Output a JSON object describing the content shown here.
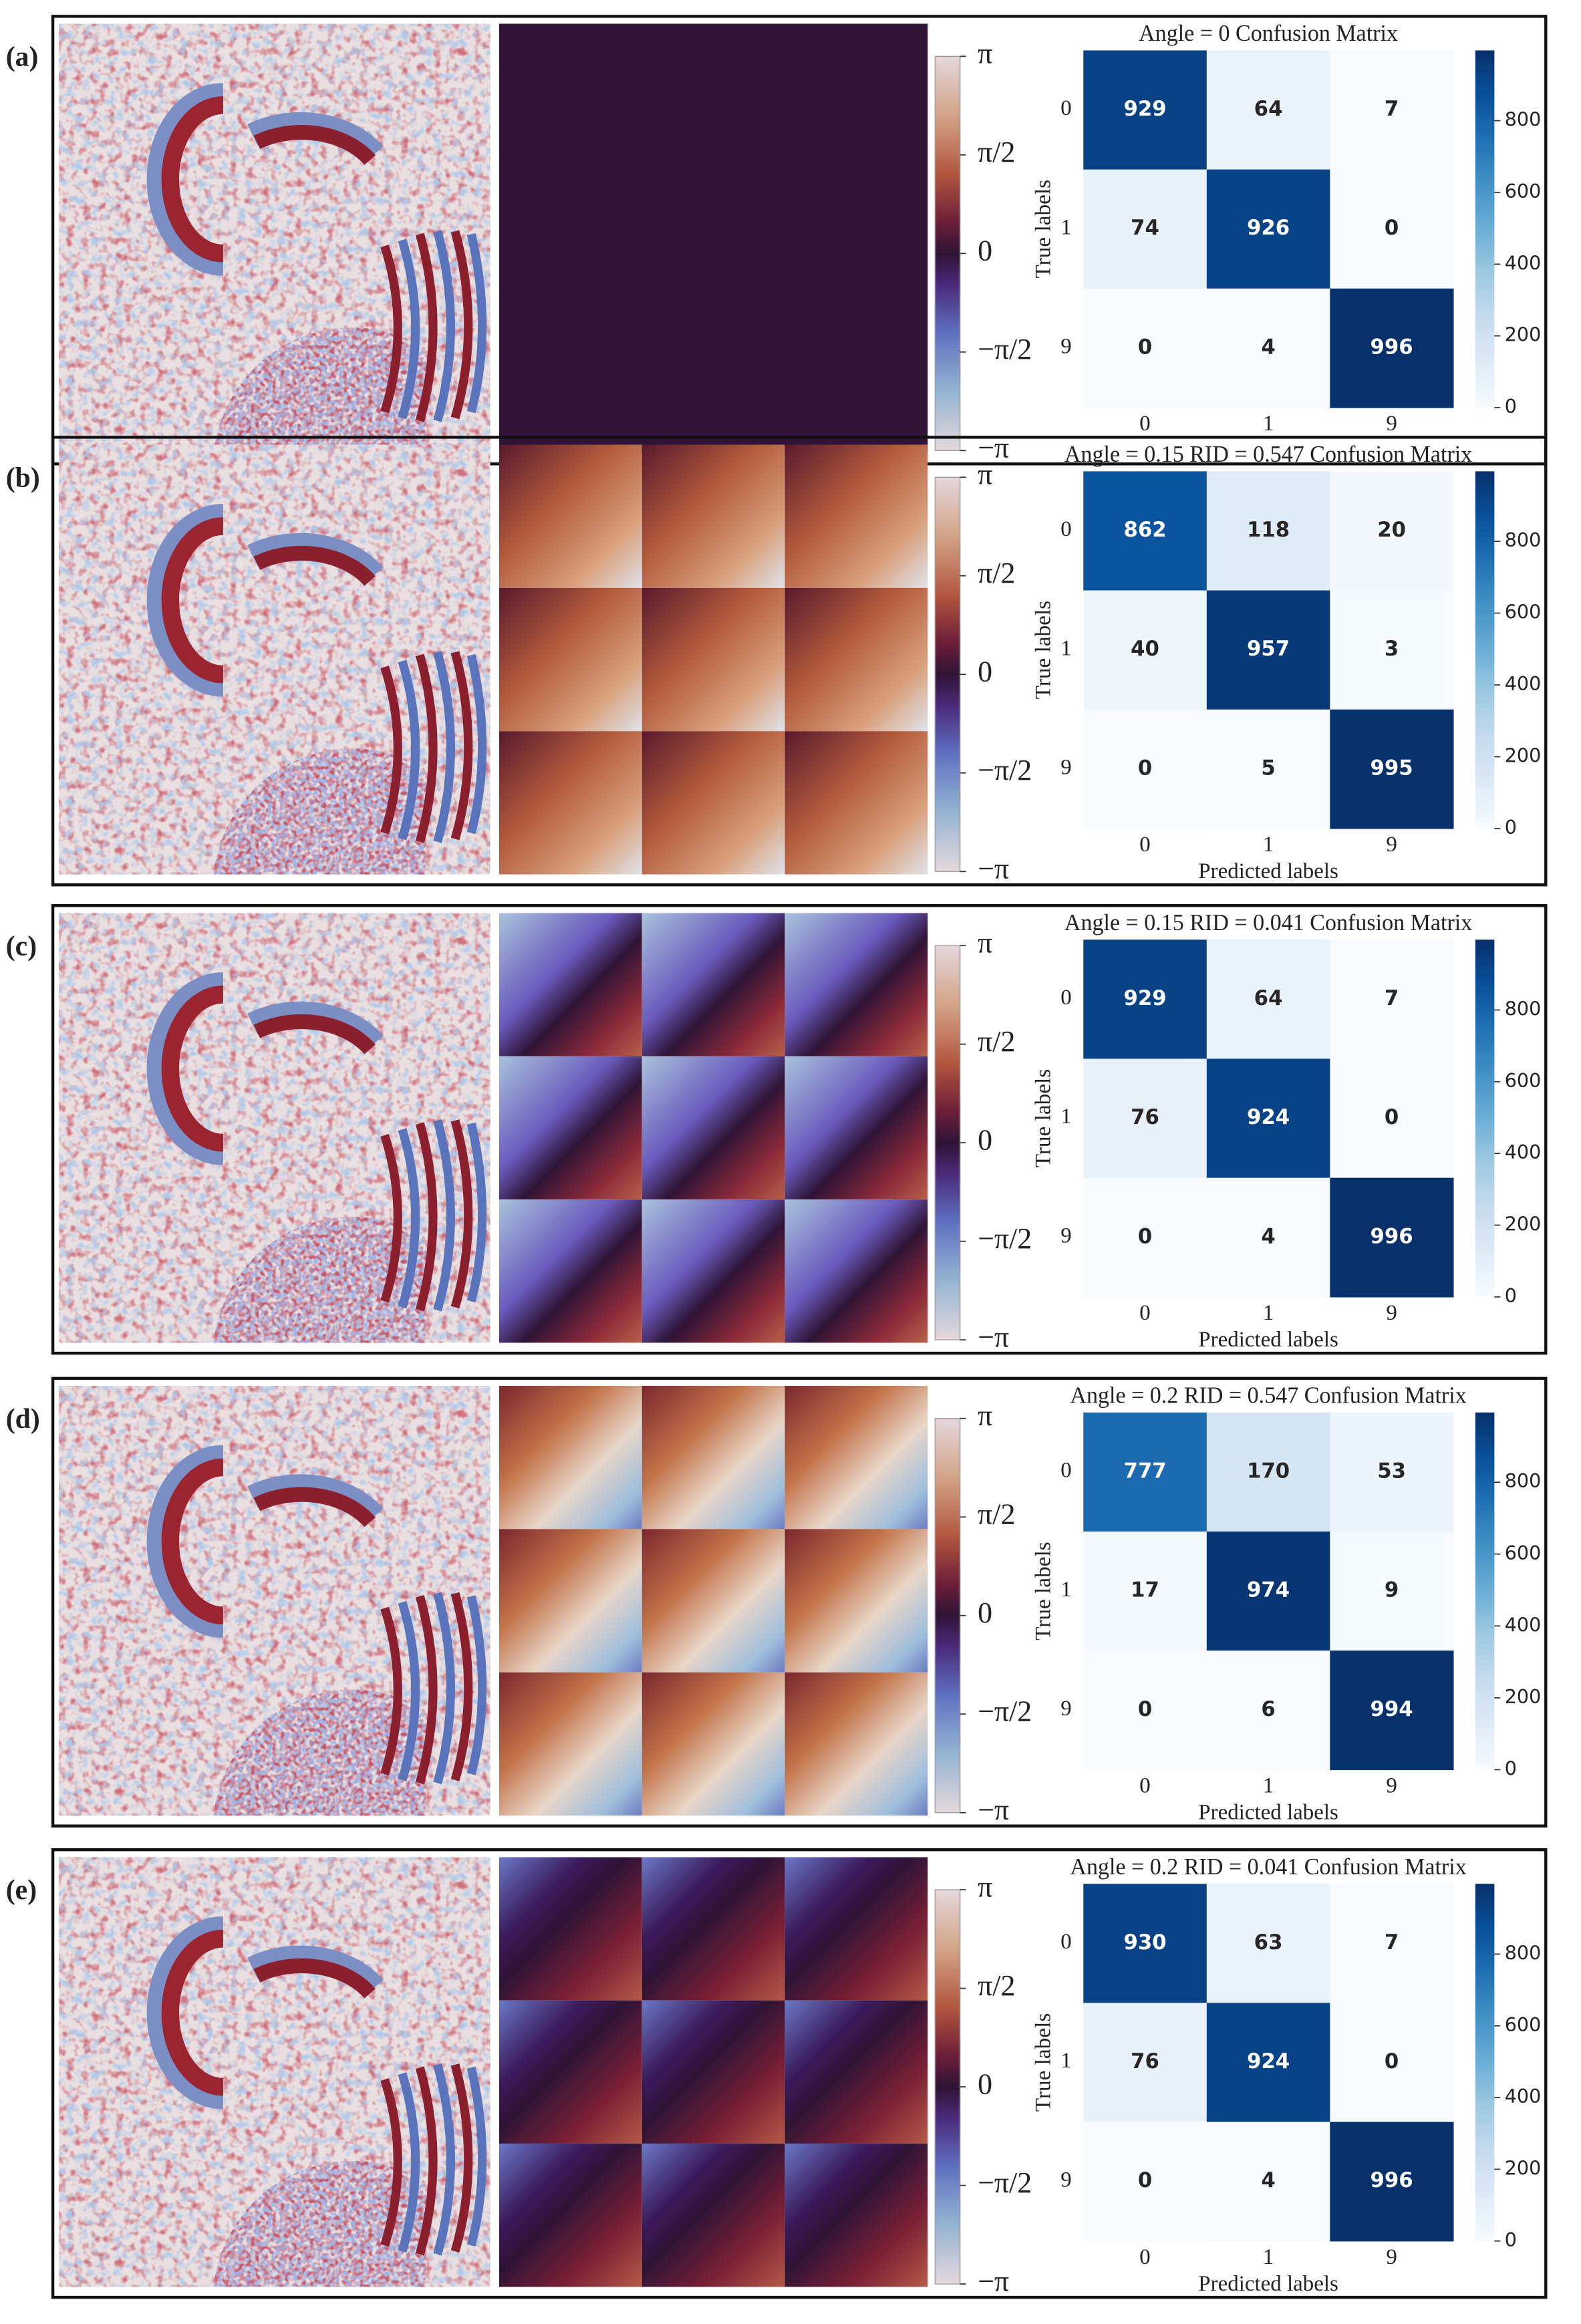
{
  "panels": [
    {
      "label": "(a)",
      "phase_colorbar": {
        "ylim": [
          -3.14159,
          3.14159
        ],
        "yticks": [
          {
            "value": 3.14159,
            "label": "π"
          },
          {
            "value": 1.5708,
            "label": "π/2"
          },
          0,
          {
            "value": -1.5708,
            "label": "−π/2"
          },
          {
            "value": -3.14159,
            "label": "−π"
          }
        ]
      }
    },
    {
      "label": "(b)",
      "phase_colorbar": {
        "ylim": [
          -3.14159,
          3.14159
        ],
        "yticks": [
          {
            "value": 3.14159,
            "label": "π"
          },
          {
            "value": 1.5708,
            "label": "π/2"
          },
          0,
          {
            "value": -1.5708,
            "label": "−π/2"
          },
          {
            "value": -3.14159,
            "label": "−π"
          }
        ]
      }
    },
    {
      "label": "(c)",
      "phase_colorbar": {
        "ylim": [
          -3.14159,
          3.14159
        ],
        "yticks": [
          {
            "value": 3.14159,
            "label": "π"
          },
          {
            "value": 1.5708,
            "label": "π/2"
          },
          0,
          {
            "value": -1.5708,
            "label": "−π/2"
          },
          {
            "value": -3.14159,
            "label": "−π"
          }
        ]
      }
    },
    {
      "label": "(d)",
      "phase_colorbar": {
        "ylim": [
          -3.14159,
          3.14159
        ],
        "yticks": [
          {
            "value": 3.14159,
            "label": "π"
          },
          {
            "value": 1.5708,
            "label": "π/2"
          },
          0,
          {
            "value": -1.5708,
            "label": "−π/2"
          },
          {
            "value": -3.14159,
            "label": "−π"
          }
        ]
      }
    },
    {
      "label": "(e)",
      "phase_colorbar": {
        "ylim": [
          -3.14159,
          3.14159
        ],
        "yticks": [
          {
            "value": 3.14159,
            "label": "π"
          },
          {
            "value": 1.5708,
            "label": "π/2"
          },
          0,
          {
            "value": -1.5708,
            "label": "−π/2"
          },
          {
            "value": -3.14159,
            "label": "−π"
          }
        ]
      }
    }
  ],
  "chart_data": [
    {
      "type": "heatmap",
      "title": "Angle = 0 Confusion Matrix",
      "y_label": "True labels",
      "categories": [
        "0",
        "1",
        "9"
      ],
      "rows": [
        "0",
        "1",
        "9"
      ],
      "values": [
        [
          929,
          64,
          7
        ],
        [
          74,
          926,
          0
        ],
        [
          0,
          4,
          996
        ]
      ],
      "colormap": "Blues",
      "clim": [
        0,
        996
      ],
      "cticks": [
        0,
        200,
        400,
        600,
        800
      ]
    },
    {
      "type": "heatmap",
      "title": "Angle = 0.15 RID = 0.547 Confusion Matrix",
      "x_label": "Predicted labels",
      "y_label": "True labels",
      "categories": [
        "0",
        "1",
        "9"
      ],
      "rows": [
        "0",
        "1",
        "9"
      ],
      "values": [
        [
          862,
          118,
          20
        ],
        [
          40,
          957,
          3
        ],
        [
          0,
          5,
          995
        ]
      ],
      "colormap": "Blues",
      "clim": [
        0,
        995
      ],
      "cticks": [
        0,
        200,
        400,
        600,
        800
      ]
    },
    {
      "type": "heatmap",
      "title": "Angle = 0.15 RID = 0.041 Confusion Matrix",
      "x_label": "Predicted labels",
      "y_label": "True labels",
      "categories": [
        "0",
        "1",
        "9"
      ],
      "rows": [
        "0",
        "1",
        "9"
      ],
      "values": [
        [
          929,
          64,
          7
        ],
        [
          76,
          924,
          0
        ],
        [
          0,
          4,
          996
        ]
      ],
      "colormap": "Blues",
      "clim": [
        0,
        996
      ],
      "cticks": [
        0,
        200,
        400,
        600,
        800
      ]
    },
    {
      "type": "heatmap",
      "title": "Angle = 0.2 RID = 0.547 Confusion Matrix",
      "x_label": "Predicted labels",
      "y_label": "True labels",
      "categories": [
        "0",
        "1",
        "9"
      ],
      "rows": [
        "0",
        "1",
        "9"
      ],
      "values": [
        [
          777,
          170,
          53
        ],
        [
          17,
          974,
          9
        ],
        [
          0,
          6,
          994
        ]
      ],
      "colormap": "Blues",
      "clim": [
        0,
        994
      ],
      "cticks": [
        0,
        200,
        400,
        600,
        800
      ]
    },
    {
      "type": "heatmap",
      "title": "Angle = 0.2 RID = 0.041 Confusion Matrix",
      "x_label": "Predicted labels",
      "y_label": "True labels",
      "categories": [
        "0",
        "1",
        "9"
      ],
      "rows": [
        "0",
        "1",
        "9"
      ],
      "values": [
        [
          930,
          63,
          7
        ],
        [
          76,
          924,
          0
        ],
        [
          0,
          4,
          996
        ]
      ],
      "colormap": "Blues",
      "clim": [
        0,
        996
      ],
      "cticks": [
        0,
        200,
        400,
        600,
        800
      ]
    }
  ]
}
